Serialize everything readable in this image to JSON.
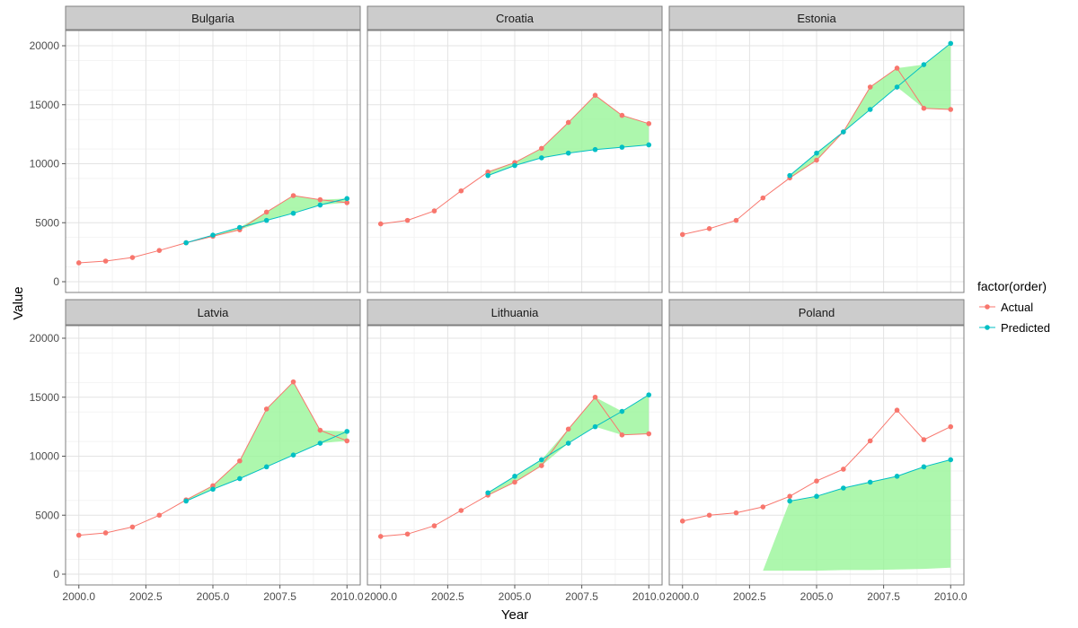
{
  "chart_data": {
    "type": "line",
    "xlabel": "Year",
    "ylabel": "Value",
    "xlim": [
      2000,
      2010
    ],
    "ylim": [
      0,
      20000
    ],
    "xticks": [
      "2000.0",
      "2002.5",
      "2005.0",
      "2007.5",
      "2010.0"
    ],
    "yticks": [
      "0",
      "5000",
      "10000",
      "15000",
      "20000"
    ],
    "grid": true,
    "legend": {
      "title": "factor(order)",
      "position": "right",
      "entries": [
        {
          "label": "Actual",
          "color": "#F8766D"
        },
        {
          "label": "Predicted",
          "color": "#00BFC4"
        }
      ]
    },
    "colors": {
      "actual": "#F8766D",
      "predicted": "#00BFC4",
      "ribbon": "#99F599"
    },
    "panels": [
      {
        "name": "Bulgaria",
        "actual": {
          "x": [
            2000,
            2001,
            2002,
            2003,
            2004,
            2005,
            2006,
            2007,
            2008,
            2009,
            2010
          ],
          "y": [
            1600,
            1750,
            2050,
            2650,
            3300,
            3850,
            4400,
            5900,
            7300,
            6950,
            6700
          ]
        },
        "predicted": {
          "x": [
            2004,
            2005,
            2006,
            2007,
            2008,
            2009,
            2010
          ],
          "y": [
            3300,
            3950,
            4600,
            5200,
            5800,
            6500,
            7050
          ]
        },
        "ribbon": {
          "x": [
            2004,
            2005,
            2006,
            2007,
            2008,
            2009,
            2010
          ],
          "ymin": [
            3300,
            3850,
            4400,
            5200,
            5800,
            6500,
            6700
          ],
          "ymax": [
            3300,
            3950,
            4600,
            5900,
            7300,
            6950,
            7050
          ]
        }
      },
      {
        "name": "Croatia",
        "actual": {
          "x": [
            2000,
            2001,
            2002,
            2003,
            2004,
            2005,
            2006,
            2007,
            2008,
            2009,
            2010
          ],
          "y": [
            4900,
            5200,
            6000,
            7700,
            9300,
            10100,
            11300,
            13500,
            15800,
            14100,
            13400
          ]
        },
        "predicted": {
          "x": [
            2004,
            2005,
            2006,
            2007,
            2008,
            2009,
            2010
          ],
          "y": [
            9000,
            9850,
            10500,
            10900,
            11200,
            11400,
            11600
          ]
        },
        "ribbon": {
          "x": [
            2004,
            2005,
            2006,
            2007,
            2008,
            2009,
            2010
          ],
          "ymin": [
            9000,
            9850,
            10500,
            10900,
            11200,
            11400,
            11600
          ],
          "ymax": [
            9300,
            10100,
            11300,
            13500,
            15800,
            14100,
            13400
          ]
        }
      },
      {
        "name": "Estonia",
        "actual": {
          "x": [
            2000,
            2001,
            2002,
            2003,
            2004,
            2005,
            2006,
            2007,
            2008,
            2009,
            2010
          ],
          "y": [
            4000,
            4500,
            5200,
            7100,
            8800,
            10300,
            12700,
            16500,
            18100,
            14700,
            14600
          ]
        },
        "predicted": {
          "x": [
            2004,
            2005,
            2006,
            2007,
            2008,
            2009,
            2010
          ],
          "y": [
            9000,
            10900,
            12700,
            14600,
            16500,
            18400,
            20200
          ]
        },
        "ribbon": {
          "x": [
            2004,
            2005,
            2006,
            2007,
            2008,
            2009,
            2010
          ],
          "ymin": [
            8800,
            10300,
            12700,
            14600,
            16500,
            14700,
            14600
          ],
          "ymax": [
            9000,
            10900,
            12700,
            16500,
            18100,
            18400,
            20200
          ]
        }
      },
      {
        "name": "Latvia",
        "actual": {
          "x": [
            2000,
            2001,
            2002,
            2003,
            2004,
            2005,
            2006,
            2007,
            2008,
            2009,
            2010
          ],
          "y": [
            3300,
            3500,
            4000,
            5000,
            6300,
            7500,
            9600,
            14000,
            16300,
            12200,
            11300
          ]
        },
        "predicted": {
          "x": [
            2004,
            2005,
            2006,
            2007,
            2008,
            2009,
            2010
          ],
          "y": [
            6200,
            7200,
            8100,
            9100,
            10100,
            11100,
            12100
          ]
        },
        "ribbon": {
          "x": [
            2004,
            2005,
            2006,
            2007,
            2008,
            2009,
            2010
          ],
          "ymin": [
            6200,
            7200,
            8100,
            9100,
            10100,
            11100,
            11300
          ],
          "ymax": [
            6300,
            7500,
            9600,
            14000,
            16300,
            12200,
            12100
          ]
        }
      },
      {
        "name": "Lithuania",
        "actual": {
          "x": [
            2000,
            2001,
            2002,
            2003,
            2004,
            2005,
            2006,
            2007,
            2008,
            2009,
            2010
          ],
          "y": [
            3200,
            3400,
            4100,
            5400,
            6700,
            7800,
            9200,
            12300,
            15000,
            11800,
            11900
          ]
        },
        "predicted": {
          "x": [
            2004,
            2005,
            2006,
            2007,
            2008,
            2009,
            2010
          ],
          "y": [
            6900,
            8300,
            9700,
            11100,
            12500,
            13800,
            15200
          ]
        },
        "ribbon": {
          "x": [
            2004,
            2005,
            2006,
            2007,
            2008,
            2009,
            2010
          ],
          "ymin": [
            6700,
            7800,
            9200,
            11100,
            12500,
            11800,
            11900
          ],
          "ymax": [
            6900,
            8300,
            9700,
            12300,
            15000,
            13800,
            15200
          ]
        }
      },
      {
        "name": "Poland",
        "actual": {
          "x": [
            2000,
            2001,
            2002,
            2003,
            2004,
            2005,
            2006,
            2007,
            2008,
            2009,
            2010
          ],
          "y": [
            4500,
            5000,
            5200,
            5700,
            6600,
            7900,
            8900,
            11300,
            13900,
            11400,
            12500
          ]
        },
        "predicted": {
          "x": [
            2004,
            2005,
            2006,
            2007,
            2008,
            2009,
            2010
          ],
          "y": [
            6200,
            6600,
            7300,
            7800,
            8300,
            9100,
            9700
          ]
        },
        "ribbon": {
          "x": [
            2003,
            2004,
            2005,
            2006,
            2007,
            2008,
            2009,
            2010
          ],
          "ymin": [
            300,
            300,
            300,
            350,
            350,
            400,
            450,
            550
          ],
          "ymax": [
            300,
            6200,
            6600,
            7300,
            7800,
            8300,
            9100,
            9700
          ]
        }
      }
    ]
  }
}
